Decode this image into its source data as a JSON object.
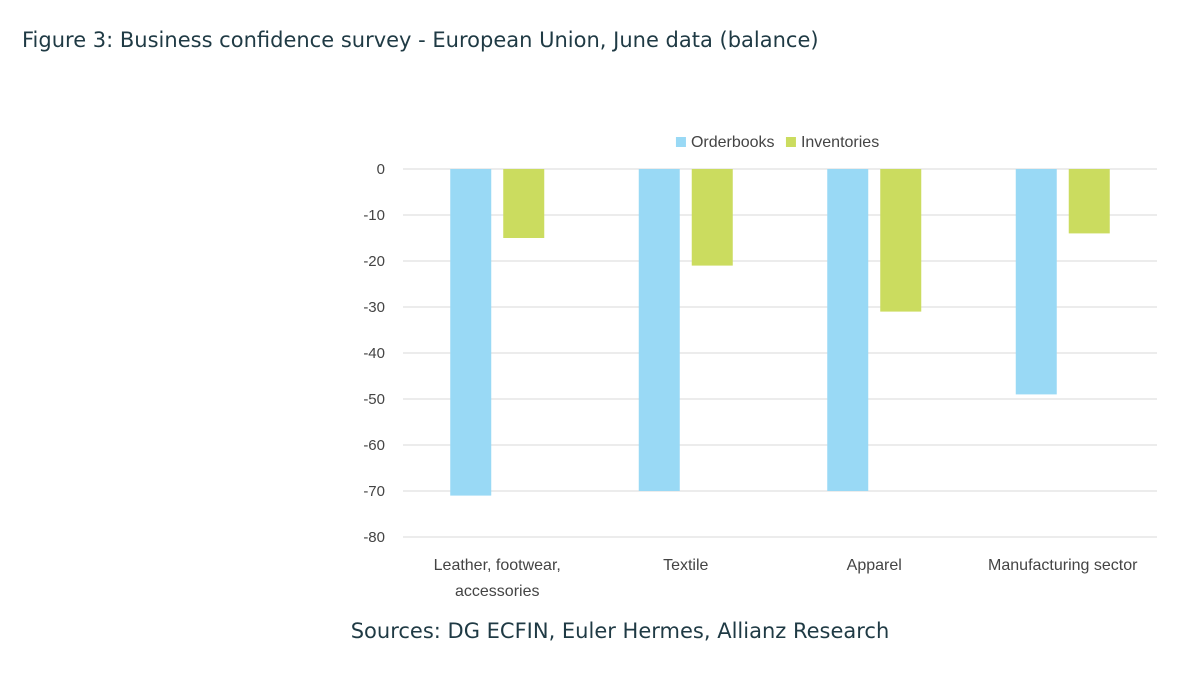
{
  "figure_title": "Figure 3: Business confidence survey - European Union, June data (balance)",
  "source": "Sources: DG ECFIN, Euler Hermes, Allianz Research",
  "colors": {
    "orderbooks": "#99d9f5",
    "inventories": "#cbdc5f",
    "grid": "#d9d9d9",
    "text": "#1f3a44"
  },
  "chart_data": {
    "type": "bar",
    "title": "",
    "xlabel": "",
    "ylabel": "",
    "ylim": [
      -80,
      0
    ],
    "yticks": [
      0,
      -10,
      -20,
      -30,
      -40,
      -50,
      -60,
      -70,
      -80
    ],
    "grid": true,
    "legend_position": "top",
    "categories": [
      [
        "Leather, footwear,",
        "accessories"
      ],
      [
        "Textile"
      ],
      [
        "Apparel"
      ],
      [
        "Manufacturing sector"
      ]
    ],
    "series": [
      {
        "name": "Orderbooks",
        "color": "#99d9f5",
        "values": [
          -71,
          -70,
          -70,
          -49
        ]
      },
      {
        "name": "Inventories",
        "color": "#cbdc5f",
        "values": [
          -15,
          -21,
          -31,
          -14
        ]
      }
    ]
  }
}
